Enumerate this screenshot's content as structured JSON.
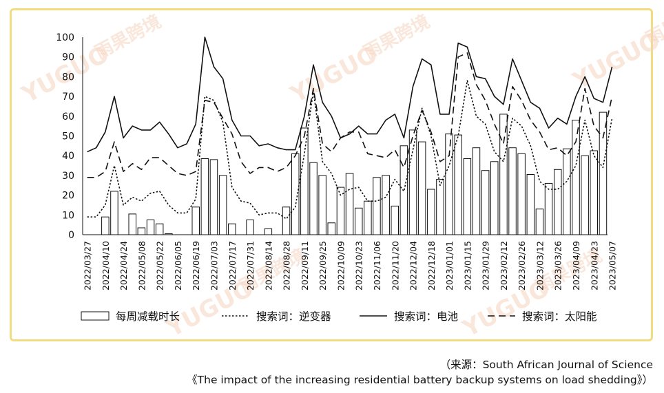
{
  "chart_data": {
    "type": "bar+line",
    "ylim": [
      0,
      100
    ],
    "yticks": [
      0,
      10,
      20,
      30,
      40,
      50,
      60,
      70,
      80,
      90,
      100
    ],
    "x_tick_labels": [
      "2022/03/27",
      "2022/04/10",
      "2022/04/24",
      "2022/05/08",
      "2022/05/22",
      "2022/06/05",
      "2022/06/19",
      "2022/07/03",
      "2022/07/17",
      "2022/07/31",
      "2022/08/14",
      "2022/08/28",
      "2022/09/11",
      "2022/09/25",
      "2022/10/09",
      "2022/10/23",
      "2022/11/06",
      "2022/11/20",
      "2022/12/04",
      "2022/12/18",
      "2023/01/01",
      "2023/01/15",
      "2023/01/29",
      "2023/02/12",
      "2023/02/26",
      "2023/03/12",
      "2023/03/26",
      "2023/04/09",
      "2023/04/23",
      "2023/05/07"
    ],
    "bar_series": {
      "name": "每周减载时长",
      "values": [
        0,
        0,
        9,
        22,
        0,
        10.5,
        3.5,
        7.5,
        5.5,
        0.5,
        0,
        0,
        14,
        38.5,
        38,
        30,
        5.5,
        0,
        7.5,
        0,
        3,
        0,
        14,
        41,
        54,
        36.5,
        30,
        6,
        24,
        31,
        13.5,
        17,
        29,
        30,
        14.5,
        45,
        53,
        47,
        23,
        28,
        51,
        50.5,
        38.5,
        44,
        32.5,
        37,
        61,
        44,
        41,
        30.5,
        13,
        26,
        33,
        43.5,
        58,
        40,
        42.5,
        62
      ]
    },
    "line_series": [
      {
        "name": "搜索词：逆变器",
        "style": "dotted",
        "values": [
          9,
          9,
          15,
          35,
          15,
          19,
          17,
          21,
          22,
          15,
          11,
          11,
          18,
          70,
          68,
          57,
          24,
          17,
          16,
          10,
          11,
          11,
          8,
          14,
          41,
          73,
          37,
          31,
          20,
          23,
          24,
          17,
          17,
          19,
          28,
          22,
          43,
          64,
          50,
          25,
          35,
          50,
          78,
          60,
          56,
          42,
          37,
          59,
          55,
          45,
          27,
          23,
          23,
          27,
          35,
          58,
          40,
          34,
          59
        ]
      },
      {
        "name": "搜索词：电池",
        "style": "solid",
        "values": [
          42,
          44,
          52,
          70,
          49,
          55,
          53,
          53,
          57,
          51,
          44,
          46,
          56,
          100,
          85,
          79,
          58,
          50,
          50,
          45,
          46,
          44,
          43,
          43,
          60,
          86,
          67,
          60,
          49,
          51,
          55,
          51,
          51,
          58,
          61,
          49,
          75,
          89,
          86,
          61,
          61,
          97,
          95,
          80,
          79,
          70,
          66,
          89,
          78,
          67,
          64,
          54,
          59,
          56,
          70,
          80,
          69,
          67,
          85
        ]
      },
      {
        "name": "搜索词：太阳能",
        "style": "dashed",
        "values": [
          29,
          29,
          32,
          47,
          32,
          36,
          33,
          39,
          39,
          35,
          31,
          30,
          32,
          68,
          67,
          59,
          51,
          37,
          31,
          34,
          34,
          32,
          34,
          40,
          50,
          74,
          46,
          42,
          49,
          52,
          52,
          41,
          40,
          39,
          43,
          34,
          50,
          63,
          52,
          37,
          40,
          90,
          92,
          76,
          68,
          56,
          46,
          75,
          68,
          58,
          52,
          43,
          44,
          40,
          47,
          74,
          55,
          49,
          70
        ]
      }
    ],
    "legend": [
      "每周减载时长",
      "搜索词：逆变器",
      "搜索词：电池",
      "搜索词：太阳能"
    ],
    "legend_position": "bottom"
  },
  "watermark": {
    "brand_latin": "YUGUO",
    "brand_cn": "雨果跨境"
  },
  "source": {
    "line1": "（来源：South African Journal of Science",
    "line2": "《The impact of the increasing residential battery backup systems on load shedding》）"
  }
}
